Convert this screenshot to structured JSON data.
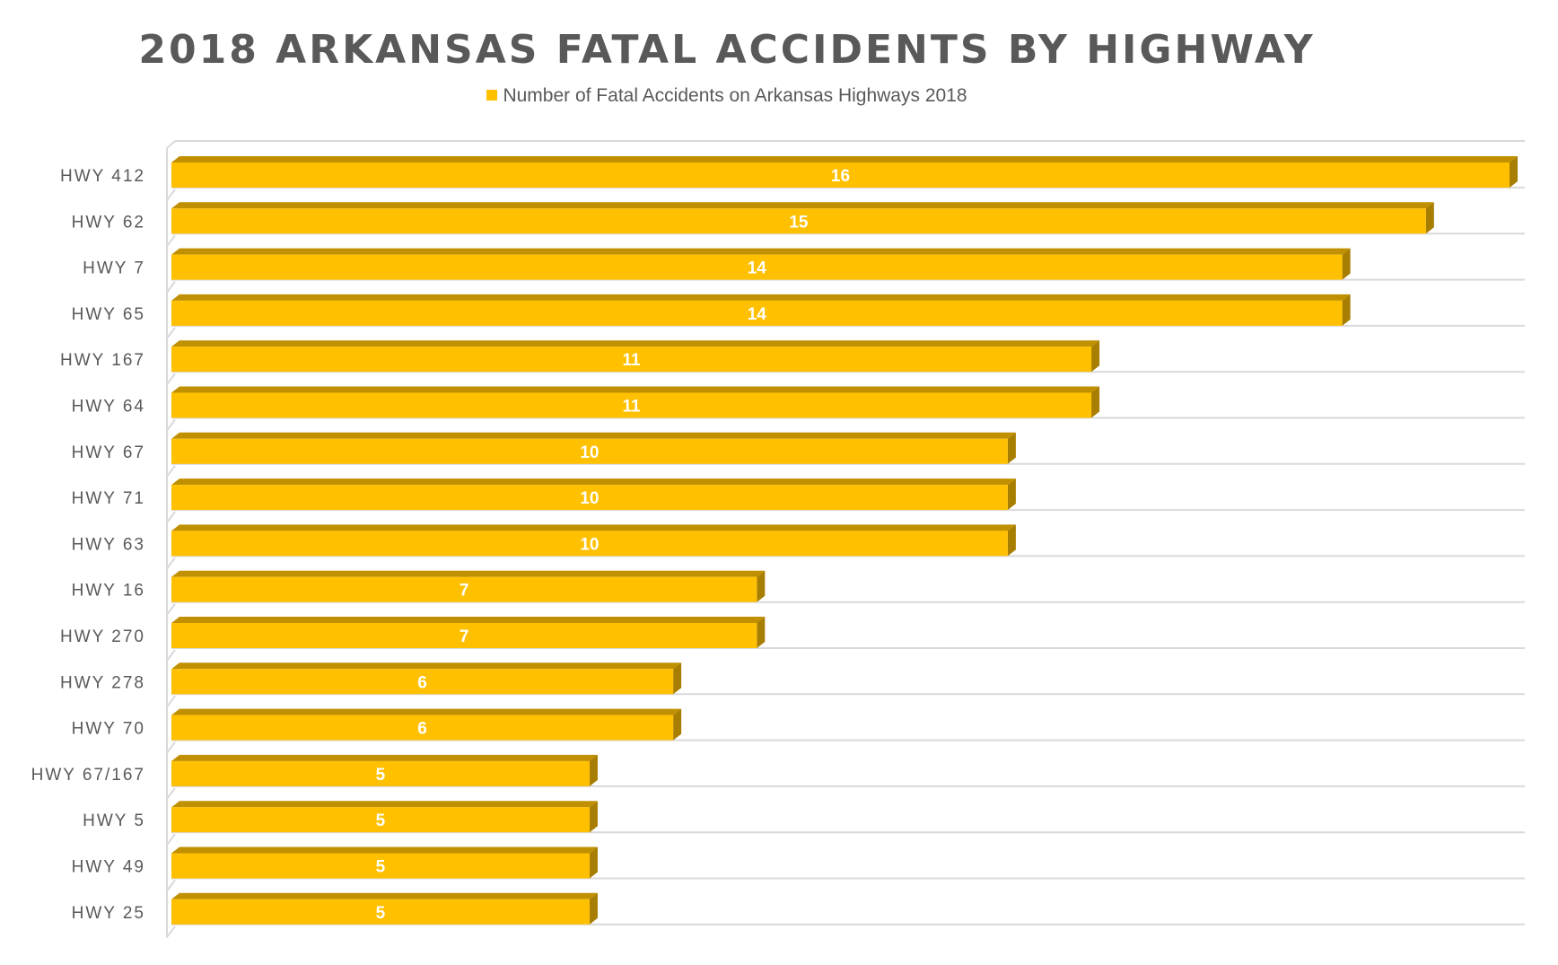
{
  "chart_data": {
    "type": "bar",
    "orientation": "horizontal",
    "title": "2018 ARKANSAS FATAL ACCIDENTS BY HIGHWAY",
    "legend": "Number of Fatal Accidents on Arkansas Highways 2018",
    "legend_position": "top",
    "categories": [
      "HWY 412",
      "HWY 62",
      "HWY 7",
      "HWY 65",
      "HWY 167",
      "HWY 64",
      "HWY 67",
      "HWY 71",
      "HWY 63",
      "HWY 16",
      "HWY 270",
      "HWY 278",
      "HWY 70",
      "HWY 67/167",
      "HWY 5",
      "HWY 49",
      "HWY 25"
    ],
    "values": [
      16,
      15,
      14,
      14,
      11,
      11,
      10,
      10,
      10,
      7,
      7,
      6,
      6,
      5,
      5,
      5,
      5
    ],
    "xlim": [
      0,
      16
    ],
    "grid": true,
    "colors": {
      "bar": "#FFC000",
      "bar_top": "#C09000",
      "bar_side": "#A87E00",
      "text": "#595959",
      "grid": "#D9D9D9"
    }
  }
}
